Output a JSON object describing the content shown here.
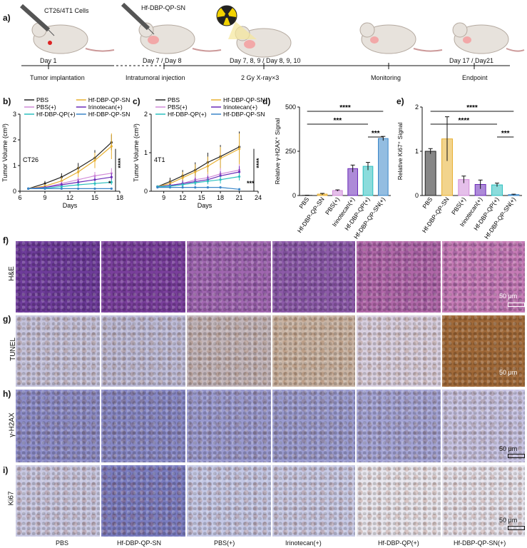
{
  "panel_letters": {
    "a": "a)",
    "b": "b)",
    "c": "c)",
    "d": "d)",
    "e": "e)",
    "f": "f)",
    "g": "g)",
    "h": "h)",
    "i": "i)"
  },
  "timeline": {
    "cells_label": "CT26/4T1 Cells",
    "drug_label": "Hf-DBP-QP-SN",
    "days": [
      "Day 1",
      "Day 7 / Day 8",
      "Day 7, 8, 9 / Day 8, 9, 10",
      "Day 17 / Day21"
    ],
    "events": [
      "Tumor implantation",
      "Intratumoral injection",
      "2 Gy X-ray×3",
      "Monitoring",
      "Endpoint"
    ]
  },
  "row_labels": {
    "he": "H&E",
    "tunel": "TUNEL",
    "gh2ax": "γ-H2AX",
    "ki67": "Ki67"
  },
  "scale_bar": "50 μm",
  "column_labels": [
    "PBS",
    "Hf-DBP-QP-SN",
    "PBS(+)",
    "Irinotecan(+)",
    "Hf-DBP-QP(+)",
    "Hf-DBP-QP-SN(+)"
  ],
  "colors": {
    "PBS": "#222222",
    "Hf-DBP-QP-SN": "#e8b030",
    "PBS(+)": "#d08ad8",
    "Irinotecan(+)": "#6a2ab8",
    "Hf-DBP-QP(+)": "#2bbfbf",
    "Hf-DBP-QP-SN(+)": "#3a86c8",
    "he": "#8a4aa8",
    "tunel": "#b8b4d6",
    "gh2ax": "#8b8ac8",
    "ki67": "#c2c4e2"
  },
  "chart_data": [
    {
      "type": "line",
      "panel": "b",
      "annotation": "CT26",
      "xlabel": "Days",
      "ylabel": "Tumor Volume (cm³)",
      "xlim": [
        6,
        18
      ],
      "ylim": [
        0,
        3
      ],
      "xticks": [
        "6",
        "9",
        "12",
        "15",
        "18"
      ],
      "yticks": [
        "0",
        "1",
        "2",
        "3"
      ],
      "x": [
        7,
        9,
        11,
        13,
        15,
        17
      ],
      "series": [
        {
          "name": "PBS",
          "values": [
            0.1,
            0.3,
            0.55,
            0.9,
            1.3,
            1.9
          ],
          "err": [
            0.03,
            0.1,
            0.15,
            0.2,
            0.3,
            0.3
          ]
        },
        {
          "name": "Hf-DBP-QP-SN",
          "values": [
            0.1,
            0.2,
            0.4,
            0.75,
            1.2,
            1.75
          ],
          "err": [
            0.03,
            0.08,
            0.15,
            0.2,
            0.3,
            0.5
          ]
        },
        {
          "name": "PBS(+)",
          "values": [
            0.1,
            0.15,
            0.3,
            0.45,
            0.6,
            0.7
          ],
          "err": [
            0.02,
            0.05,
            0.1,
            0.1,
            0.15,
            0.2
          ]
        },
        {
          "name": "Irinotecan(+)",
          "values": [
            0.1,
            0.15,
            0.25,
            0.35,
            0.45,
            0.55
          ],
          "err": [
            0.02,
            0.05,
            0.08,
            0.1,
            0.12,
            0.15
          ]
        },
        {
          "name": "Hf-DBP-QP(+)",
          "values": [
            0.1,
            0.12,
            0.18,
            0.25,
            0.3,
            0.35
          ],
          "err": [
            0.02,
            0.04,
            0.05,
            0.08,
            0.1,
            0.1
          ]
        },
        {
          "name": "Hf-DBP-QP-SN(+)",
          "values": [
            0.1,
            0.1,
            0.1,
            0.1,
            0.1,
            0.1
          ],
          "err": [
            0.02,
            0.02,
            0.03,
            0.03,
            0.03,
            0.03
          ]
        }
      ],
      "significance": [
        "****",
        "*"
      ]
    },
    {
      "type": "line",
      "panel": "c",
      "annotation": "4T1",
      "xlabel": "Days",
      "ylabel": "Tumor Volume (cm³)",
      "xlim": [
        7,
        24
      ],
      "ylim": [
        0,
        2
      ],
      "xticks": [
        "9",
        "12",
        "15",
        "18",
        "21",
        "24"
      ],
      "yticks": [
        "0",
        "1",
        "2"
      ],
      "x": [
        8,
        10,
        12,
        14,
        16,
        18,
        21
      ],
      "series": [
        {
          "name": "PBS",
          "values": [
            0.12,
            0.25,
            0.4,
            0.55,
            0.75,
            0.9,
            1.15
          ],
          "err": [
            0.03,
            0.1,
            0.15,
            0.2,
            0.25,
            0.3,
            0.4
          ]
        },
        {
          "name": "Hf-DBP-QP-SN",
          "values": [
            0.12,
            0.2,
            0.35,
            0.5,
            0.65,
            0.85,
            1.1
          ],
          "err": [
            0.03,
            0.08,
            0.15,
            0.2,
            0.25,
            0.3,
            0.4
          ]
        },
        {
          "name": "PBS(+)",
          "values": [
            0.12,
            0.15,
            0.2,
            0.3,
            0.35,
            0.45,
            0.55
          ],
          "err": [
            0.02,
            0.05,
            0.08,
            0.1,
            0.1,
            0.15,
            0.15
          ]
        },
        {
          "name": "Irinotecan(+)",
          "values": [
            0.12,
            0.15,
            0.2,
            0.25,
            0.3,
            0.4,
            0.5
          ],
          "err": [
            0.02,
            0.05,
            0.08,
            0.1,
            0.1,
            0.12,
            0.15
          ]
        },
        {
          "name": "Hf-DBP-QP(+)",
          "values": [
            0.12,
            0.13,
            0.17,
            0.22,
            0.26,
            0.3,
            0.38
          ],
          "err": [
            0.02,
            0.04,
            0.05,
            0.06,
            0.08,
            0.1,
            0.1
          ]
        },
        {
          "name": "Hf-DBP-QP-SN(+)",
          "values": [
            0.1,
            0.1,
            0.1,
            0.1,
            0.1,
            0.1,
            0.05
          ],
          "err": [
            0.02,
            0.02,
            0.02,
            0.03,
            0.03,
            0.03,
            0.03
          ]
        }
      ],
      "significance": [
        "****",
        "***"
      ]
    },
    {
      "type": "bar",
      "panel": "d",
      "ylabel": "Relative γ-H2AX⁺ Signal",
      "ylim": [
        0,
        500
      ],
      "yticks": [
        "0",
        "250",
        "500"
      ],
      "categories": [
        "PBS",
        "Hf-DBP-QP-SN",
        "PBS(+)",
        "Irinotecan(+)",
        "Hf-DBP-QP(+)",
        "Hf-DBP-QP-SN(+)"
      ],
      "values": [
        1,
        8,
        28,
        152,
        165,
        322
      ],
      "err": [
        1,
        4,
        4,
        20,
        22,
        12
      ],
      "significance": [
        "****",
        "***",
        "***"
      ]
    },
    {
      "type": "bar",
      "panel": "e",
      "ylabel": "Relative Ki67⁺ Signal",
      "ylim": [
        0,
        2
      ],
      "yticks": [
        "0",
        "1",
        "2"
      ],
      "categories": [
        "PBS",
        "Hf-DBP-QP-SN",
        "PBS(+)",
        "Irinotecan(+)",
        "Hf-DBP-QP(+)",
        "Hf-DBP-QP-SN(+)"
      ],
      "values": [
        1.0,
        1.28,
        0.36,
        0.25,
        0.24,
        0.02
      ],
      "err": [
        0.06,
        0.5,
        0.08,
        0.1,
        0.04,
        0.01
      ],
      "significance": [
        "****",
        "****",
        "***"
      ]
    }
  ]
}
